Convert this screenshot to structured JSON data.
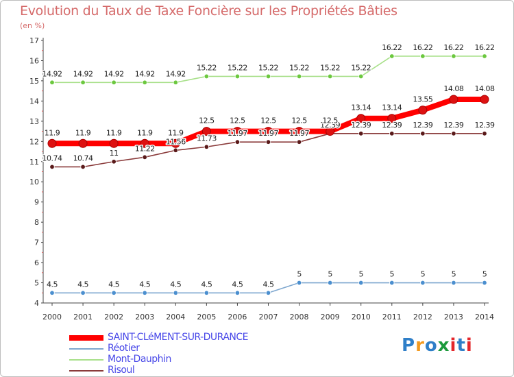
{
  "header": {
    "title": "Evolution du Taux de Taxe Foncière sur les Propriétés Bâties",
    "subtitle": "(en %)"
  },
  "logo": {
    "text": "Proxiti",
    "colors": [
      "#2f7fc8",
      "#f39a1f",
      "#2f7fc8",
      "#1c9a3c",
      "#e4262b",
      "#2f7fc8",
      "#e4262b"
    ]
  },
  "chart_data": {
    "type": "line",
    "title": "Evolution du Taux de Taxe Foncière sur les Propriétés Bâties",
    "ylabel": "(en %)",
    "xlabel": "",
    "ylim": [
      4,
      17
    ],
    "yticks": [
      4,
      5,
      6,
      7,
      8,
      9,
      10,
      11,
      12,
      13,
      14,
      15,
      16,
      17
    ],
    "grid": false,
    "legend_position": "bottom-left",
    "x": [
      "2000",
      "2001",
      "2002",
      "2003",
      "2004",
      "2005",
      "2006",
      "2007",
      "2008",
      "2009",
      "2010",
      "2011",
      "2012",
      "2013",
      "2014"
    ],
    "series": [
      {
        "name": "SAINT-CLéMENT-SUR-DURANCE",
        "color": "#ff0000",
        "marker_color": "#dd1111",
        "label_color": "#ffffff",
        "thick": true,
        "values": [
          11.9,
          11.9,
          11.9,
          11.9,
          11.9,
          12.5,
          12.5,
          12.5,
          12.5,
          12.5,
          13.14,
          13.14,
          13.55,
          14.08,
          14.08
        ],
        "labels": [
          "11.9",
          "11.9",
          "11.9",
          "11.9",
          "11.9",
          "12.5",
          "12.5",
          "12.5",
          "12.5",
          "12.5",
          "13.14",
          "13.14",
          "13.55",
          "14.08",
          "14.08"
        ]
      },
      {
        "name": "Réotier",
        "color": "#7ea7cf",
        "marker_color": "#4b8fcf",
        "label_color": "#ffffff",
        "thick": false,
        "values": [
          4.5,
          4.5,
          4.5,
          4.5,
          4.5,
          4.5,
          4.5,
          4.5,
          5,
          5,
          5,
          5,
          5,
          5,
          5
        ],
        "labels": [
          "4.5",
          "4.5",
          "4.5",
          "4.5",
          "4.5",
          "4.5",
          "4.5",
          "4.5",
          "5",
          "5",
          "5",
          "5",
          "5",
          "5",
          "5"
        ]
      },
      {
        "name": "Mont-Dauphin",
        "color": "#a8e08a",
        "marker_color": "#6cc83f",
        "label_color": "#ffffff",
        "thick": false,
        "values": [
          14.92,
          14.92,
          14.92,
          14.92,
          14.92,
          15.22,
          15.22,
          15.22,
          15.22,
          15.22,
          15.22,
          16.22,
          16.22,
          16.22,
          16.22
        ],
        "labels": [
          "14.92",
          "14.92",
          "14.92",
          "14.92",
          "14.92",
          "15.22",
          "15.22",
          "15.22",
          "15.22",
          "15.22",
          "15.22",
          "16.22",
          "16.22",
          "16.22",
          "16.22"
        ]
      },
      {
        "name": "Risoul",
        "color": "#8a3a3a",
        "marker_color": "#5a1a1a",
        "label_color": "#ffffff",
        "thick": false,
        "values": [
          10.74,
          10.74,
          11,
          11.22,
          11.56,
          11.73,
          11.97,
          11.97,
          11.97,
          12.39,
          12.39,
          12.39,
          12.39,
          12.39,
          12.39
        ],
        "labels": [
          "10.74",
          "10.74",
          "11",
          "11.22",
          "11.56",
          "11.73",
          "11.97",
          "11.97",
          "11.97",
          "12.39",
          "12.39",
          "12.39",
          "12.39",
          "12.39",
          "12.39"
        ]
      }
    ]
  }
}
